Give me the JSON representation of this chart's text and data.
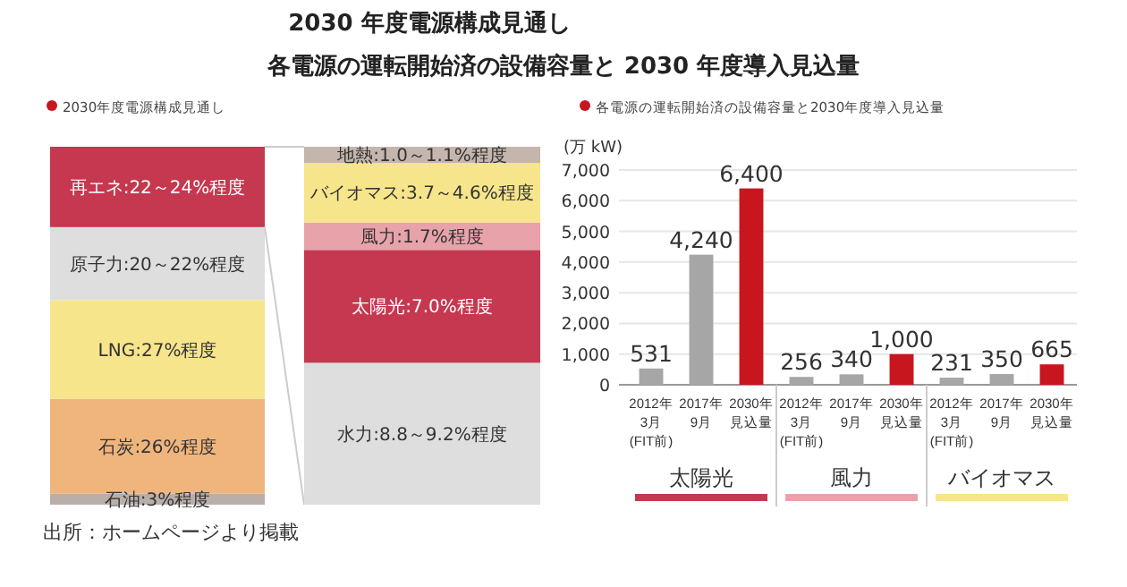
{
  "chart_data": [
    {
      "type": "bar",
      "stacked": true,
      "subtitle": "2030年度電源構成見通し",
      "categories": [
        null
      ],
      "series": [
        {
          "color": "#b9aea8",
          "values": [
            3
          ],
          "value_labels": [
            "石油:3%程度"
          ]
        },
        {
          "color": "#f0b57d",
          "values": [
            26
          ],
          "value_labels": [
            "石炭:26%程度"
          ]
        },
        {
          "color": "#f7e58b",
          "values": [
            27
          ],
          "value_labels": [
            "LNG:27%程度"
          ]
        },
        {
          "color": "#dedede",
          "values": [
            20
          ],
          "value_labels": [
            "原子力:20～22%程度"
          ]
        },
        {
          "color": "#c5384f",
          "values": [
            22
          ],
          "value_labels": [
            "再エネ:22～24%程度"
          ]
        }
      ],
      "annotations": [
        "出所：ホームページより掲載"
      ]
    },
    {
      "type": "bar",
      "stacked": true,
      "title": "2030 年度電源構成見通し",
      "categories": [
        null
      ],
      "series": [
        {
          "color": "#dedede",
          "values": [
            8.8
          ],
          "value_labels": [
            "水力:8.8～9.2%程度"
          ]
        },
        {
          "color": "#c5384f",
          "values": [
            7.0
          ],
          "value_labels": [
            "太陽光:7.0%程度"
          ]
        },
        {
          "color": "#e8a3aa",
          "values": [
            1.7
          ],
          "value_labels": [
            "風力:1.7%程度"
          ]
        },
        {
          "color": "#f7e58b",
          "values": [
            3.7
          ],
          "value_labels": [
            "バイオマス:3.7～4.6%程度"
          ]
        },
        {
          "color": "#c4b5ad",
          "values": [
            1.0
          ],
          "value_labels": [
            "地熱:1.0～1.1%程度"
          ]
        }
      ]
    },
    {
      "type": "bar",
      "title": "各電源の運転開始済の設備容量と 2030 年度導入見込量",
      "subtitle": "各電源の運転開始済の設備容量と2030年度導入見込量",
      "ylabel": "(万 kW)",
      "categories": [
        "2012年3月(FIT前)",
        "2017年9月",
        "2030年見込量",
        "2012年3月(FIT前)",
        "2017年9月",
        "2030年見込量",
        "2012年3月(FIT前)",
        "2017年9月",
        "2030年見込量"
      ],
      "values": [
        531,
        4240,
        6400,
        256,
        340,
        1000,
        231,
        350,
        665
      ],
      "colors": [
        "#a6a6a6",
        "#a6a6a6",
        "#c8161e",
        "#a6a6a6",
        "#a6a6a6",
        "#c8161e",
        "#a6a6a6",
        "#a6a6a6",
        "#c8161e"
      ],
      "value_labels": [
        "531",
        "4,240",
        "6,400",
        "256",
        "340",
        "1,000",
        "231",
        "350",
        "665"
      ],
      "ylim": [
        0,
        7000
      ],
      "yticks": [
        0,
        {
          "value": 1000,
          "label": "1,000"
        },
        {
          "value": 2000,
          "label": "2,000"
        },
        {
          "value": 3000,
          "label": "3,000"
        },
        {
          "value": 4000,
          "label": "4,000"
        },
        {
          "value": 5000,
          "label": "5,000"
        },
        {
          "value": 6000,
          "label": "6,000"
        },
        {
          "value": 7000,
          "label": "7,000"
        }
      ],
      "grid": "y",
      "annotations": [
        "太陽光",
        "風力",
        "バイオマス"
      ]
    }
  ]
}
